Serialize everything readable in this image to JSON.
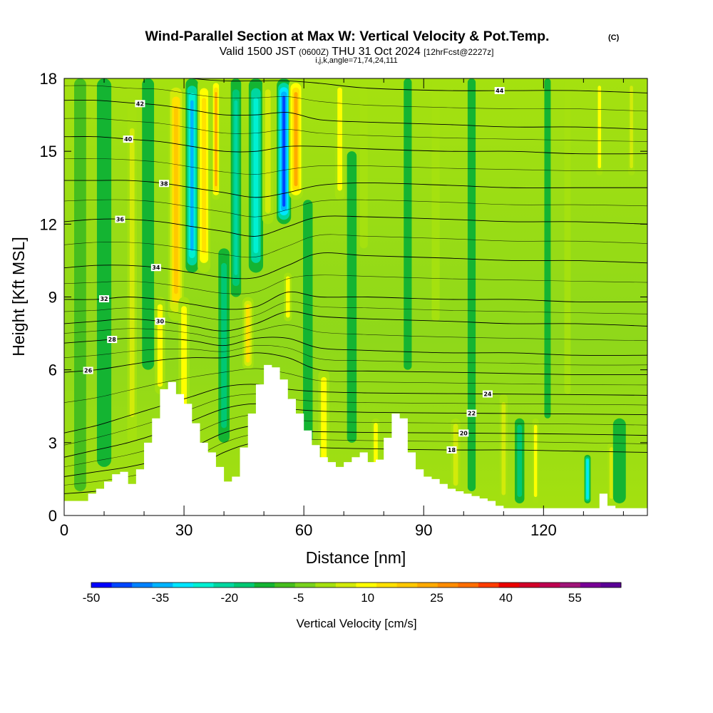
{
  "header": {
    "title": "Wind-Parallel Section at Max W: Vertical Velocity & Pot.Temp.",
    "title_mark": "(C)",
    "valid_pre": "Valid 1500 JST",
    "valid_utc": "(0600Z)",
    "valid_date": "THU 31 Oct 2024",
    "valid_fcst": "[12hrFcst@2227z]",
    "indices": "i,j,k,angle=71,74,24,111"
  },
  "chart_data": {
    "type": "heatmap",
    "xlabel": "Distance [nm]",
    "ylabel": "Height [Kft MSL]",
    "xlim": [
      0,
      146
    ],
    "ylim": [
      0,
      18
    ],
    "x_ticks": [
      0,
      30,
      60,
      90,
      120
    ],
    "y_ticks": [
      0,
      3,
      6,
      9,
      12,
      15,
      18
    ],
    "colorbar": {
      "label": "Vertical Velocity [cm/s]",
      "tick_labels": [
        "-50",
        "-35",
        "-20",
        "-5",
        "10",
        "25",
        "40",
        "55"
      ],
      "tick_values": [
        -50,
        -35,
        -20,
        -5,
        10,
        25,
        40,
        55
      ],
      "range": [
        -50,
        65
      ],
      "step": 5,
      "colors": [
        "#0000ff",
        "#0046ff",
        "#0082ff",
        "#00b4ff",
        "#00e6ff",
        "#00f0d2",
        "#00d7a0",
        "#00c873",
        "#14b432",
        "#46be1e",
        "#78d21e",
        "#a5e10f",
        "#d2eb0a",
        "#ffff00",
        "#ffe100",
        "#ffc800",
        "#ffaa00",
        "#ff8c00",
        "#ff6e00",
        "#ff3c00",
        "#eb0000",
        "#d20028",
        "#be0050",
        "#a01478",
        "#780096",
        "#5a0096"
      ]
    },
    "terrain": {
      "x": [
        0,
        4,
        6,
        8,
        10,
        12,
        14,
        16,
        18,
        20,
        22,
        24,
        26,
        28,
        30,
        32,
        34,
        36,
        38,
        40,
        42,
        44,
        46,
        48,
        50,
        52,
        54,
        56,
        58,
        60,
        62,
        64,
        66,
        68,
        70,
        72,
        74,
        76,
        78,
        80,
        82,
        84,
        86,
        88,
        90,
        92,
        94,
        96,
        98,
        100,
        102,
        104,
        106,
        108,
        110,
        112,
        114,
        116,
        118,
        120,
        122,
        124,
        126,
        128,
        130,
        132,
        134,
        136,
        138,
        140,
        142,
        144,
        146
      ],
      "y": [
        0.6,
        0.6,
        0.9,
        1.1,
        1.4,
        1.7,
        1.8,
        1.3,
        1.9,
        3.0,
        4.0,
        5.2,
        5.5,
        5.0,
        4.6,
        3.8,
        3.0,
        2.6,
        2.0,
        1.4,
        1.6,
        2.8,
        4.2,
        5.4,
        6.2,
        6.1,
        5.6,
        4.8,
        4.2,
        3.5,
        2.9,
        2.4,
        2.2,
        2.0,
        2.2,
        2.4,
        2.6,
        2.2,
        2.3,
        3.2,
        4.2,
        4.0,
        2.6,
        1.9,
        1.6,
        1.5,
        1.3,
        1.1,
        1.0,
        0.9,
        0.8,
        0.7,
        0.6,
        0.4,
        0.3,
        0.3,
        0.3,
        0.3,
        0.3,
        0.3,
        0.3,
        0.3,
        0.3,
        0.3,
        0.3,
        0.3,
        0.9,
        0.4,
        0.3,
        0.3,
        0.3,
        0.3,
        0.3
      ]
    },
    "contours": [
      {
        "theta": 18,
        "label": "18",
        "label_x": 97,
        "y": [
          0.9,
          1.0,
          1.2,
          1.5,
          1.9,
          2.6,
          3.0,
          2.9,
          2.8,
          2.75,
          2.7,
          2.7,
          2.65,
          2.6
        ]
      },
      {
        "theta": 20,
        "label": "20",
        "label_x": 100,
        "y": [
          1.6,
          1.8,
          2.0,
          2.3,
          2.8,
          3.4,
          3.7,
          3.5,
          3.45,
          3.42,
          3.4,
          3.38,
          3.35,
          3.3
        ]
      },
      {
        "theta": 22,
        "label": "22",
        "label_x": 102,
        "y": [
          2.4,
          2.7,
          3.0,
          3.4,
          3.9,
          4.4,
          4.6,
          4.4,
          4.3,
          4.25,
          4.22,
          4.2,
          4.18,
          4.15
        ]
      },
      {
        "theta": 24,
        "label": "24",
        "label_x": 106,
        "y": [
          3.4,
          3.7,
          4.1,
          4.5,
          4.9,
          5.3,
          5.4,
          5.2,
          5.1,
          5.05,
          5.02,
          5.0,
          4.98,
          4.95
        ]
      },
      {
        "theta": 26,
        "label": "26",
        "label_x": 6,
        "y": [
          5.9,
          6.0,
          6.2,
          6.4,
          6.5,
          6.5,
          6.7,
          6.5,
          6.0,
          5.95,
          5.9,
          5.85,
          5.8,
          5.8
        ]
      },
      {
        "theta": 28,
        "label": "28",
        "label_x": 12,
        "y": [
          7.1,
          7.2,
          7.3,
          7.3,
          7.2,
          7.0,
          7.3,
          7.3,
          6.9,
          6.8,
          6.7,
          6.7,
          6.6,
          6.6
        ]
      },
      {
        "theta": 30,
        "label": "30",
        "label_x": 24,
        "y": [
          7.9,
          8.0,
          8.1,
          8.0,
          7.8,
          7.6,
          7.9,
          8.4,
          8.2,
          8.1,
          8.0,
          7.9,
          7.9,
          7.8
        ]
      },
      {
        "theta": 32,
        "label": "32",
        "label_x": 10,
        "y": [
          8.9,
          8.9,
          9.0,
          8.9,
          8.7,
          8.5,
          8.6,
          9.2,
          9.0,
          9.0,
          8.9,
          8.9,
          8.8,
          8.8
        ]
      },
      {
        "theta": 34,
        "label": "34",
        "label_x": 23,
        "y": [
          10.2,
          10.3,
          10.3,
          10.2,
          10.0,
          9.8,
          9.8,
          10.3,
          10.8,
          10.7,
          10.6,
          10.5,
          10.5,
          10.4
        ]
      },
      {
        "theta": 36,
        "label": "36",
        "label_x": 14,
        "y": [
          12.1,
          12.2,
          12.2,
          12.1,
          11.9,
          11.7,
          11.5,
          11.9,
          12.3,
          12.3,
          12.2,
          12.1,
          12.1,
          12.0
        ]
      },
      {
        "theta": 38,
        "label": "38",
        "label_x": 25,
        "y": [
          13.8,
          13.8,
          13.8,
          13.7,
          13.5,
          13.3,
          13.1,
          13.3,
          13.6,
          13.7,
          13.6,
          13.5,
          13.5,
          13.5
        ]
      },
      {
        "theta": 40,
        "label": "40",
        "label_x": 16,
        "y": [
          15.6,
          15.6,
          15.5,
          15.4,
          15.2,
          15.0,
          15.0,
          15.2,
          15.2,
          15.1,
          15.0,
          15.0,
          14.9,
          14.9
        ]
      },
      {
        "theta": 42,
        "label": "42",
        "label_x": 19,
        "y": [
          17.1,
          17.1,
          17.0,
          16.9,
          16.7,
          16.5,
          16.5,
          16.6,
          16.3,
          16.2,
          16.1,
          16.0,
          16.0,
          15.9
        ]
      },
      {
        "theta": 44,
        "label": "44",
        "label_x": 109,
        "y": [
          18.3,
          18.3,
          18.2,
          18.2,
          18.0,
          17.9,
          17.9,
          17.9,
          17.8,
          17.6,
          17.5,
          17.5,
          17.5,
          17.4
        ]
      }
    ],
    "contour_x": [
      0,
      8,
      16,
      24,
      32,
      40,
      48,
      56,
      64,
      76,
      96,
      112,
      128,
      146
    ]
  }
}
